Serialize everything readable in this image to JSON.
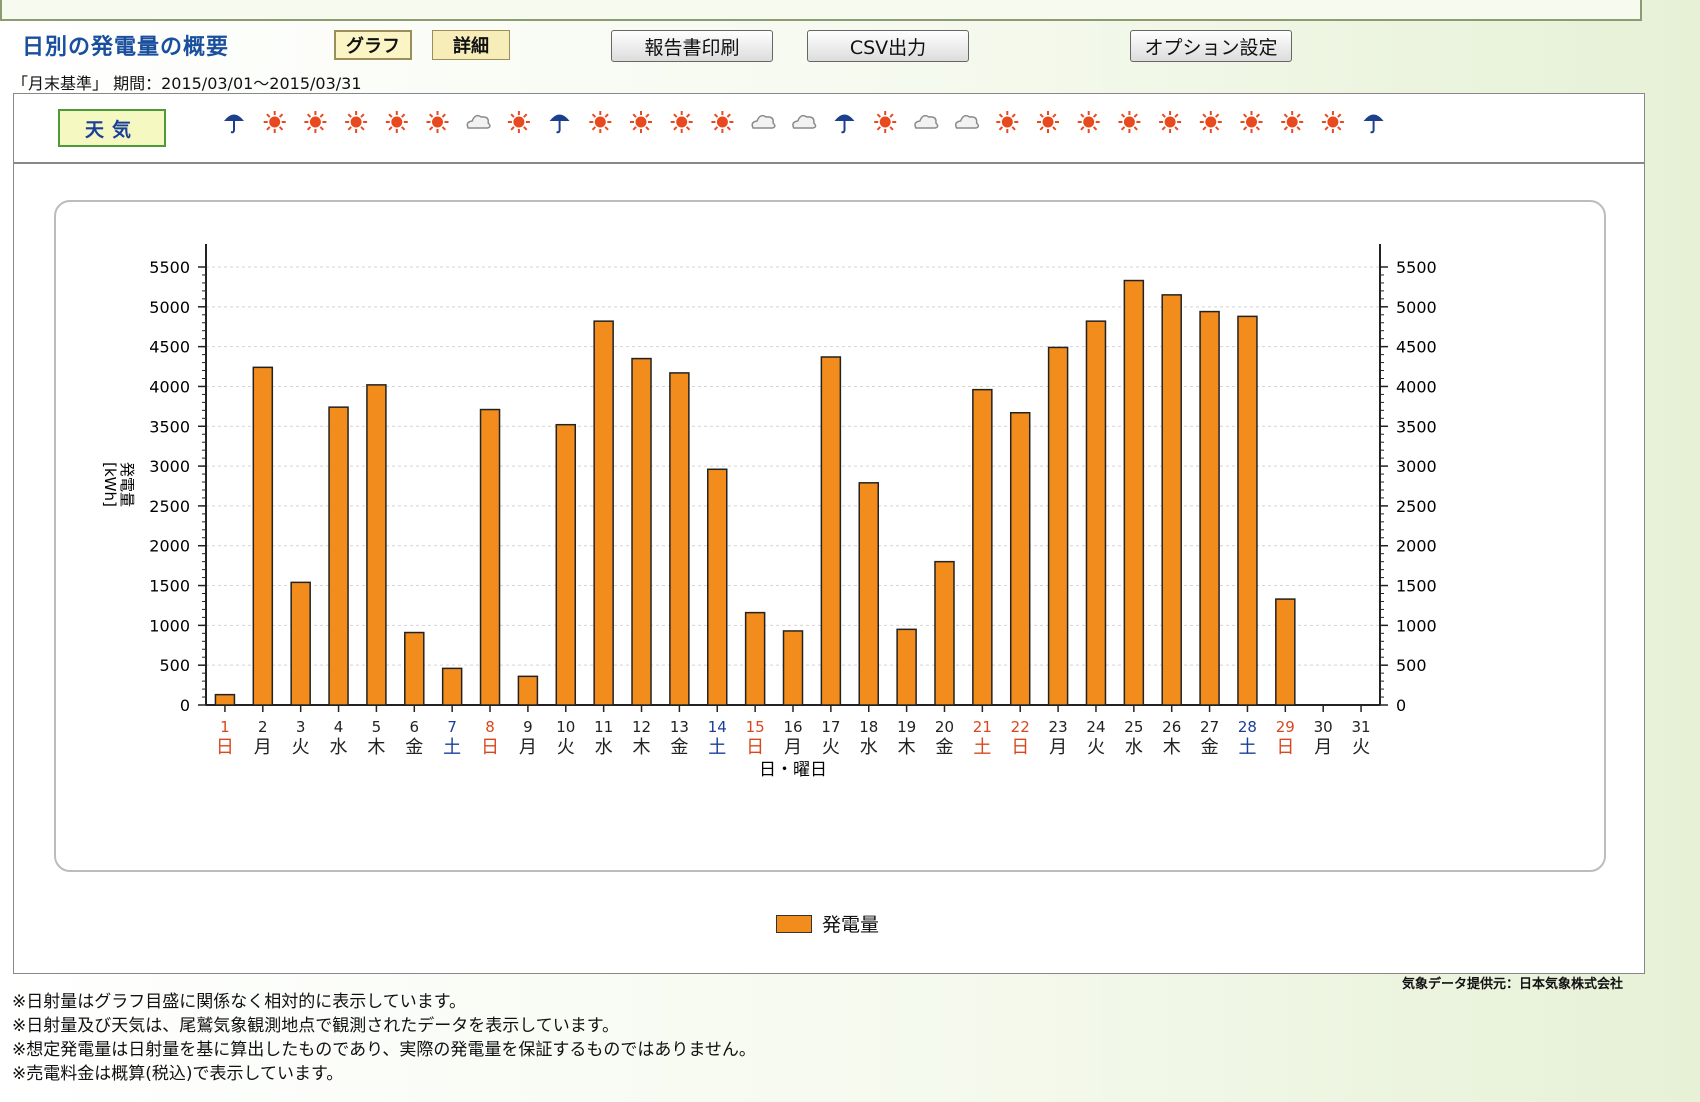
{
  "header": {
    "title": "日別の発電量の概要",
    "tab_graph": "グラフ",
    "tab_detail": "詳細",
    "btn_print": "報告書印刷",
    "btn_csv": "CSV出力",
    "btn_option": "オプション設定"
  },
  "period": "「月末基準」 期間：2015/03/01～2015/03/31",
  "weather": {
    "label": "天気",
    "icons": [
      "rain",
      "sun",
      "sun",
      "sun",
      "sun",
      "sun",
      "cloud",
      "sun",
      "rain",
      "sun",
      "sun",
      "sun",
      "sun",
      "cloud",
      "cloud",
      "rain",
      "sun",
      "cloud",
      "cloud",
      "sun",
      "sun",
      "sun",
      "sun",
      "sun",
      "sun",
      "sun",
      "sun",
      "sun",
      "rain"
    ],
    "colors": {
      "sun": "#e8491e",
      "rain": "#1c3f8e",
      "cloud": "#8a8a8a"
    }
  },
  "chart_data": {
    "type": "bar",
    "categories": [
      "1",
      "2",
      "3",
      "4",
      "5",
      "6",
      "7",
      "8",
      "9",
      "10",
      "11",
      "12",
      "13",
      "14",
      "15",
      "16",
      "17",
      "18",
      "19",
      "20",
      "21",
      "22",
      "23",
      "24",
      "25",
      "26",
      "27",
      "28",
      "29",
      "30",
      "31"
    ],
    "weekdays": [
      "日",
      "月",
      "火",
      "水",
      "木",
      "金",
      "土",
      "日",
      "月",
      "火",
      "水",
      "木",
      "金",
      "土",
      "日",
      "月",
      "火",
      "水",
      "木",
      "金",
      "土",
      "日",
      "月",
      "火",
      "水",
      "木",
      "金",
      "土",
      "日",
      "月",
      "火"
    ],
    "day_colors": [
      "red",
      "",
      "",
      "",
      "",
      "",
      "blue",
      "red",
      "",
      "",
      "",
      "",
      "",
      "blue",
      "red",
      "",
      "",
      "",
      "",
      "",
      "red",
      "red",
      "",
      "",
      "",
      "",
      "",
      "blue",
      "red",
      "",
      ""
    ],
    "series": [
      {
        "name": "発電量",
        "color": "#f28c1c",
        "values": [
          130,
          4240,
          1540,
          3740,
          4020,
          910,
          460,
          3710,
          360,
          3520,
          4820,
          4350,
          4170,
          2960,
          1160,
          930,
          4370,
          2790,
          950,
          1800,
          3960,
          3670,
          4490,
          4820,
          5330,
          5150,
          4940,
          4880,
          1330,
          null,
          null
        ]
      }
    ],
    "xlabel": "日・曜日",
    "ylabel": "発電量\n[kWh]",
    "ylim": [
      0,
      5500
    ],
    "yticks": [
      0,
      500,
      1000,
      1500,
      2000,
      2500,
      3000,
      3500,
      4000,
      4500,
      5000,
      5500
    ],
    "grid": true,
    "legend": "bottom-center"
  },
  "footer": {
    "source": "気象データ提供元：日本気象株式会社",
    "notes": [
      "※日射量はグラフ目盛に関係なく相対的に表示しています。",
      "※日射量及び天気は、尾鷲気象観測地点で観測されたデータを表示しています。",
      "※想定発電量は日射量を基に算出したものであり、実際の発電量を保証するものではありません。",
      "※売電料金は概算(税込)で表示しています。"
    ]
  }
}
